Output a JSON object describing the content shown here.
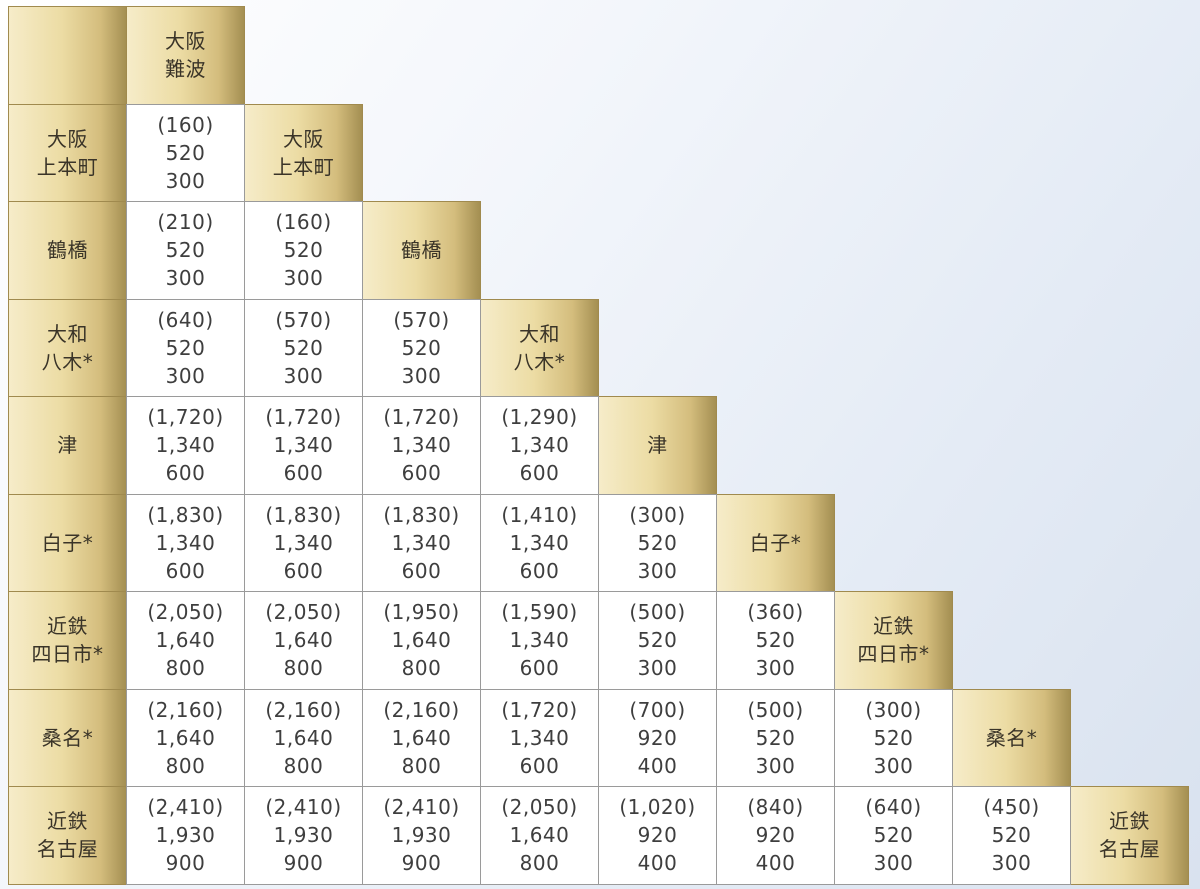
{
  "stations": [
    {
      "line1": "大阪",
      "line2": "難波"
    },
    {
      "line1": "大阪",
      "line2": "上本町"
    },
    {
      "line1": "鶴橋",
      "line2": ""
    },
    {
      "line1": "大和",
      "line2": "八木*"
    },
    {
      "line1": "津",
      "line2": ""
    },
    {
      "line1": "白子*",
      "line2": ""
    },
    {
      "line1": "近鉄",
      "line2": "四日市*"
    },
    {
      "line1": "桑名*",
      "line2": ""
    },
    {
      "line1": "近鉄",
      "line2": "名古屋"
    }
  ],
  "fares": [
    [],
    [
      [
        "(160)",
        "520",
        "300"
      ]
    ],
    [
      [
        "(210)",
        "520",
        "300"
      ],
      [
        "(160)",
        "520",
        "300"
      ]
    ],
    [
      [
        "(640)",
        "520",
        "300"
      ],
      [
        "(570)",
        "520",
        "300"
      ],
      [
        "(570)",
        "520",
        "300"
      ]
    ],
    [
      [
        "(1,720)",
        "1,340",
        "600"
      ],
      [
        "(1,720)",
        "1,340",
        "600"
      ],
      [
        "(1,720)",
        "1,340",
        "600"
      ],
      [
        "(1,290)",
        "1,340",
        "600"
      ]
    ],
    [
      [
        "(1,830)",
        "1,340",
        "600"
      ],
      [
        "(1,830)",
        "1,340",
        "600"
      ],
      [
        "(1,830)",
        "1,340",
        "600"
      ],
      [
        "(1,410)",
        "1,340",
        "600"
      ],
      [
        "(300)",
        "520",
        "300"
      ]
    ],
    [
      [
        "(2,050)",
        "1,640",
        "800"
      ],
      [
        "(2,050)",
        "1,640",
        "800"
      ],
      [
        "(1,950)",
        "1,640",
        "800"
      ],
      [
        "(1,590)",
        "1,340",
        "600"
      ],
      [
        "(500)",
        "520",
        "300"
      ],
      [
        "(360)",
        "520",
        "300"
      ]
    ],
    [
      [
        "(2,160)",
        "1,640",
        "800"
      ],
      [
        "(2,160)",
        "1,640",
        "800"
      ],
      [
        "(2,160)",
        "1,640",
        "800"
      ],
      [
        "(1,720)",
        "1,340",
        "600"
      ],
      [
        "(700)",
        "920",
        "400"
      ],
      [
        "(500)",
        "520",
        "300"
      ],
      [
        "(300)",
        "520",
        "300"
      ]
    ],
    [
      [
        "(2,410)",
        "1,930",
        "900"
      ],
      [
        "(2,410)",
        "1,930",
        "900"
      ],
      [
        "(2,410)",
        "1,930",
        "900"
      ],
      [
        "(2,050)",
        "1,640",
        "800"
      ],
      [
        "(1,020)",
        "920",
        "400"
      ],
      [
        "(840)",
        "920",
        "400"
      ],
      [
        "(640)",
        "520",
        "300"
      ],
      [
        "(450)",
        "520",
        "300"
      ]
    ]
  ]
}
